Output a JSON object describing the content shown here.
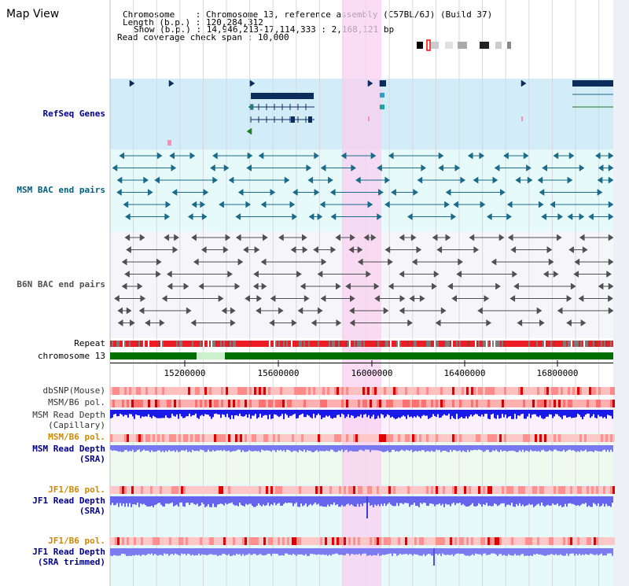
{
  "title": "Map View",
  "info": {
    "chromosome_label": "Chromosome",
    "chromosome_value": "Chromosome 13, reference assembly (C57BL/6J) (Build 37)",
    "length_label": "Length (b.p.)",
    "length_value": "120,284,312",
    "show_label": "Show (b.p.)",
    "show_value": "14,946,213-17,114,333 : 2,168,121 bp",
    "span_label": "Read coverage check span",
    "span_value": "10,000"
  },
  "tracks": {
    "refseq": "RefSeq Genes",
    "msm_bac": "MSM BAC end pairs",
    "b6n_bac": "B6N BAC end pairs",
    "repeat": "Repeat",
    "chromosome": "chromosome 13",
    "dbsnp": "dbSNP(Mouse)",
    "msm_b6_pol_1": "MSM/B6 pol.",
    "msm_depth_cap_1": "MSM Read Depth",
    "msm_depth_cap_2": "(Capillary)",
    "msm_b6_pol_2": "MSM/B6 pol.",
    "msm_depth_sra_1": "MSM Read Depth",
    "msm_depth_sra_2": "(SRA)",
    "jf1_pol_1": "JF1/B6 pol.",
    "jf1_depth_1": "JF1 Read Depth",
    "jf1_depth_2": "(SRA)",
    "jf1_pol_2": "JF1/B6 pol.",
    "jf1_trim_1": "JF1 Read Depth",
    "jf1_trim_2": "(SRA trimmed)"
  },
  "axis_ticks": [
    "15200000",
    "15600000",
    "16000000",
    "16400000",
    "16800000"
  ],
  "colors": {
    "refseq_bg": "#d2ecf8",
    "msm_bg": "#e6fafa",
    "b6n_bg": "#f5f5fa",
    "highlight": "#f8d0f0",
    "gene": "#0c2c5c",
    "msm_pair": "#1a6a8a",
    "b6n_pair": "#505050",
    "chromosome_band": "#007000",
    "label_blue": "#00008b",
    "label_teal": "#005f7f",
    "label_orange": "#d08800"
  }
}
